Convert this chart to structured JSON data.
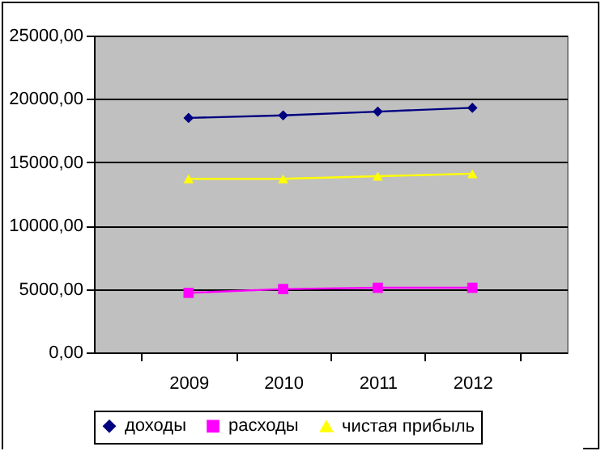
{
  "chart_data": {
    "type": "line",
    "categories": [
      "2009",
      "2010",
      "2011",
      "2012"
    ],
    "series": [
      {
        "name": "доходы",
        "color": "#000080",
        "marker": "diamond",
        "values": [
          18500,
          18700,
          19000,
          19300
        ]
      },
      {
        "name": "расходы",
        "color": "#ff00ff",
        "marker": "square",
        "values": [
          4700,
          5000,
          5100,
          5100
        ]
      },
      {
        "name": "чистая прибыль",
        "color": "#ffff00",
        "marker": "triangle",
        "values": [
          13700,
          13700,
          13900,
          14100
        ]
      }
    ],
    "ylim": [
      0,
      25000
    ],
    "yticks": [
      {
        "value": 0,
        "label": "0,00"
      },
      {
        "value": 5000,
        "label": "5000,00"
      },
      {
        "value": 10000,
        "label": "10000,00"
      },
      {
        "value": 15000,
        "label": "15000,00"
      },
      {
        "value": 20000,
        "label": "20000,00"
      },
      {
        "value": 25000,
        "label": "25000,00"
      }
    ],
    "grid": "y",
    "legend": "bottom",
    "line_style": "solid"
  }
}
